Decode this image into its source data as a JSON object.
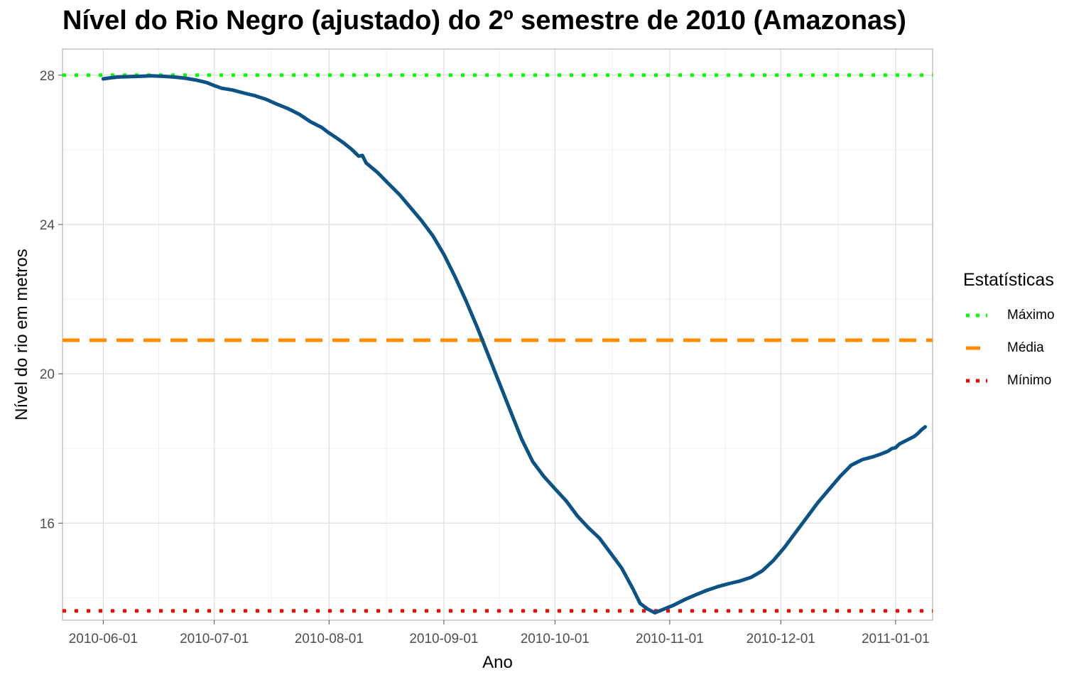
{
  "title": "Nível do Rio Negro (ajustado) do 2º semestre de 2010 (Amazonas)",
  "legend": {
    "title": "Estatísticas",
    "items": [
      {
        "label": "Máximo",
        "color": "#00FF00",
        "dash": "dotted"
      },
      {
        "label": "Média",
        "color": "#FF8C00",
        "dash": "dashed"
      },
      {
        "label": "Mínimo",
        "color": "#FF0000",
        "dash": "dotted"
      }
    ]
  },
  "chart_data": {
    "type": "line",
    "xlabel": "Ano",
    "ylabel": "Nível do rio em metros",
    "x_ticks": [
      "2010-06-01",
      "2010-07-01",
      "2010-08-01",
      "2010-09-01",
      "2010-10-01",
      "2010-11-01",
      "2010-12-01",
      "2011-01-01"
    ],
    "y_ticks": [
      16,
      20,
      24,
      28
    ],
    "xlim": [
      "2010-05-21",
      "2011-01-11"
    ],
    "ylim": [
      13.4,
      28.7
    ],
    "grid": true,
    "legend_position": "right",
    "series": [
      {
        "color": "#0B5384",
        "points": [
          [
            "2010-06-01",
            27.9
          ],
          [
            "2010-06-03",
            27.93
          ],
          [
            "2010-06-05",
            27.95
          ],
          [
            "2010-06-08",
            27.96
          ],
          [
            "2010-06-11",
            27.97
          ],
          [
            "2010-06-14",
            27.98
          ],
          [
            "2010-06-17",
            27.97
          ],
          [
            "2010-06-20",
            27.95
          ],
          [
            "2010-06-23",
            27.92
          ],
          [
            "2010-06-26",
            27.87
          ],
          [
            "2010-06-29",
            27.8
          ],
          [
            "2010-07-01",
            27.72
          ],
          [
            "2010-07-03",
            27.65
          ],
          [
            "2010-07-06",
            27.6
          ],
          [
            "2010-07-09",
            27.52
          ],
          [
            "2010-07-12",
            27.45
          ],
          [
            "2010-07-15",
            27.35
          ],
          [
            "2010-07-18",
            27.22
          ],
          [
            "2010-07-21",
            27.1
          ],
          [
            "2010-07-24",
            26.95
          ],
          [
            "2010-07-27",
            26.75
          ],
          [
            "2010-07-30",
            26.6
          ],
          [
            "2010-08-01",
            26.45
          ],
          [
            "2010-08-03",
            26.32
          ],
          [
            "2010-08-05",
            26.18
          ],
          [
            "2010-08-07",
            26.02
          ],
          [
            "2010-08-09",
            25.83
          ],
          [
            "2010-08-10",
            25.85
          ],
          [
            "2010-08-11",
            25.65
          ],
          [
            "2010-08-14",
            25.4
          ],
          [
            "2010-08-17",
            25.1
          ],
          [
            "2010-08-20",
            24.8
          ],
          [
            "2010-08-23",
            24.45
          ],
          [
            "2010-08-26",
            24.1
          ],
          [
            "2010-08-29",
            23.7
          ],
          [
            "2010-09-01",
            23.2
          ],
          [
            "2010-09-04",
            22.6
          ],
          [
            "2010-09-07",
            21.95
          ],
          [
            "2010-09-10",
            21.25
          ],
          [
            "2010-09-13",
            20.5
          ],
          [
            "2010-09-16",
            19.75
          ],
          [
            "2010-09-19",
            19.0
          ],
          [
            "2010-09-22",
            18.25
          ],
          [
            "2010-09-25",
            17.65
          ],
          [
            "2010-09-28",
            17.25
          ],
          [
            "2010-10-01",
            16.92
          ],
          [
            "2010-10-04",
            16.6
          ],
          [
            "2010-10-07",
            16.2
          ],
          [
            "2010-10-10",
            15.88
          ],
          [
            "2010-10-13",
            15.6
          ],
          [
            "2010-10-16",
            15.2
          ],
          [
            "2010-10-19",
            14.8
          ],
          [
            "2010-10-22",
            14.25
          ],
          [
            "2010-10-24",
            13.85
          ],
          [
            "2010-10-26",
            13.7
          ],
          [
            "2010-10-28",
            13.6
          ],
          [
            "2010-10-30",
            13.68
          ],
          [
            "2010-11-02",
            13.8
          ],
          [
            "2010-11-05",
            13.95
          ],
          [
            "2010-11-08",
            14.08
          ],
          [
            "2010-11-11",
            14.2
          ],
          [
            "2010-11-14",
            14.3
          ],
          [
            "2010-11-17",
            14.38
          ],
          [
            "2010-11-20",
            14.45
          ],
          [
            "2010-11-23",
            14.55
          ],
          [
            "2010-11-26",
            14.72
          ],
          [
            "2010-11-29",
            15.0
          ],
          [
            "2010-12-02",
            15.35
          ],
          [
            "2010-12-05",
            15.75
          ],
          [
            "2010-12-08",
            16.15
          ],
          [
            "2010-12-11",
            16.55
          ],
          [
            "2010-12-14",
            16.9
          ],
          [
            "2010-12-17",
            17.25
          ],
          [
            "2010-12-20",
            17.55
          ],
          [
            "2010-12-23",
            17.7
          ],
          [
            "2010-12-26",
            17.78
          ],
          [
            "2010-12-28",
            17.85
          ],
          [
            "2010-12-30",
            17.93
          ],
          [
            "2010-12-31",
            18.0
          ],
          [
            "2011-01-01",
            18.02
          ],
          [
            "2011-01-02",
            18.12
          ],
          [
            "2011-01-04",
            18.22
          ],
          [
            "2011-01-06",
            18.32
          ],
          [
            "2011-01-07",
            18.4
          ],
          [
            "2011-01-08",
            18.5
          ],
          [
            "2011-01-09",
            18.58
          ]
        ]
      }
    ],
    "reference_lines": [
      {
        "name": "Máximo",
        "y": 28.0,
        "color": "#00FF00",
        "dash": "dotted"
      },
      {
        "name": "Média",
        "y": 20.9,
        "color": "#FF8C00",
        "dash": "dashed"
      },
      {
        "name": "Mínimo",
        "y": 13.65,
        "color": "#FF0000",
        "dash": "dotted"
      }
    ]
  }
}
